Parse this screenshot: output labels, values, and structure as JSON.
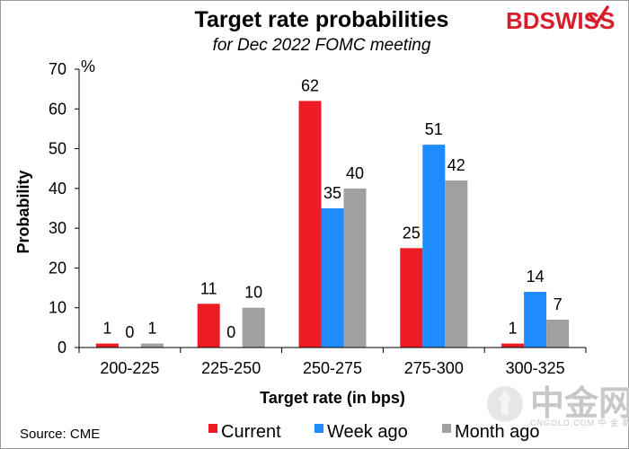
{
  "chart_data": {
    "type": "bar",
    "title": "Target rate probabilities",
    "subtitle": "for Dec 2022 FOMC meeting",
    "xlabel": "Target rate (in bps)",
    "ylabel": "Probability",
    "yunit": "%",
    "ylim": [
      0,
      70
    ],
    "yticks": [
      0,
      10,
      20,
      30,
      40,
      50,
      60,
      70
    ],
    "categories": [
      "200-225",
      "225-250",
      "250-275",
      "275-300",
      "300-325"
    ],
    "series": [
      {
        "name": "Current",
        "color": "#ed1c24",
        "values": [
          1,
          11,
          62,
          25,
          1
        ],
        "labels": [
          "1",
          "11",
          "62",
          "25",
          "1"
        ]
      },
      {
        "name": "Week ago",
        "color": "#1e8cff",
        "values": [
          0,
          0,
          35,
          51,
          14
        ],
        "labels": [
          "0",
          "0",
          "35",
          "51",
          "14"
        ]
      },
      {
        "name": "Month ago",
        "color": "#a0a0a0",
        "values": [
          1,
          10,
          40,
          42,
          7
        ],
        "labels": [
          "1",
          "10",
          "40",
          "42",
          "7"
        ]
      }
    ],
    "legend_position": "bottom"
  },
  "branding": {
    "logo": "BDSWISS",
    "logo_color": "#d81e2c"
  },
  "source": "Source: CME",
  "watermark": {
    "text": "中金网",
    "subtext": "CNGOLD.COM  中 金 新 媒 体"
  }
}
